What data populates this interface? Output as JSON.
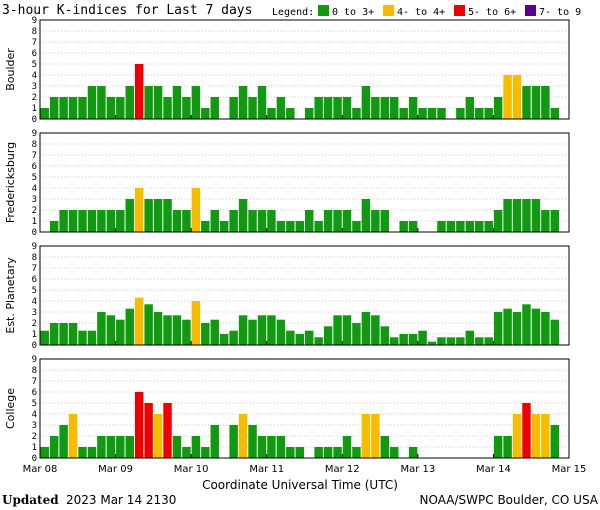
{
  "title": "3-hour K-indices for Last 7 days",
  "legend": {
    "label": "Legend:",
    "items": [
      {
        "label": "0 to 3+",
        "color": "#119911"
      },
      {
        "label": "4- to 4+",
        "color": "#f5bc00"
      },
      {
        "label": "5- to 6+",
        "color": "#ee0000"
      },
      {
        "label": "7- to 9",
        "color": "#5a008f"
      }
    ]
  },
  "footer": {
    "updated_label": "Updated",
    "updated_value": "2023 Mar 14 2130",
    "source": "NOAA/SWPC Boulder, CO USA"
  },
  "chart_data": [
    {
      "type": "bar",
      "name": "Boulder",
      "ylim": [
        0,
        9
      ],
      "yticks": [
        "0",
        "1",
        "2",
        "3",
        "4",
        "5",
        "6",
        "7",
        "8",
        "9"
      ],
      "values": [
        1,
        2,
        2,
        2,
        2,
        3,
        3,
        2,
        2,
        3,
        5,
        3,
        3,
        2,
        3,
        2,
        3,
        1,
        2,
        0,
        2,
        3,
        2,
        3,
        1,
        2,
        1,
        0,
        1,
        2,
        2,
        2,
        2,
        1,
        3,
        2,
        2,
        2,
        1,
        2,
        1,
        1,
        1,
        0,
        1,
        2,
        1,
        1,
        2,
        4,
        4,
        3,
        3,
        3,
        1,
        0
      ]
    },
    {
      "type": "bar",
      "name": "Fredericksburg",
      "ylim": [
        0,
        9
      ],
      "yticks": [
        "0",
        "1",
        "2",
        "3",
        "4",
        "5",
        "6",
        "7",
        "8",
        "9"
      ],
      "values": [
        0,
        1,
        2,
        2,
        2,
        2,
        2,
        2,
        2,
        3,
        4,
        3,
        3,
        3,
        2,
        2,
        4,
        1,
        2,
        1,
        2,
        3,
        2,
        2,
        2,
        1,
        1,
        1,
        2,
        1,
        2,
        2,
        2,
        1,
        3,
        2,
        2,
        0,
        1,
        1,
        0,
        0,
        1,
        1,
        1,
        1,
        1,
        1,
        2,
        3,
        3,
        3,
        3,
        2,
        2,
        0
      ]
    },
    {
      "type": "bar",
      "name": "Est. Planetary",
      "ylim": [
        0,
        9
      ],
      "yticks": [
        "0",
        "1",
        "2",
        "3",
        "4",
        "5",
        "6",
        "7",
        "8",
        "9"
      ],
      "values": [
        1.3,
        2,
        2,
        2,
        1.3,
        1.3,
        3,
        2.7,
        2.3,
        3.3,
        4.3,
        3.7,
        3,
        2.7,
        2.7,
        2.3,
        4,
        2,
        2.3,
        1,
        1.3,
        2.7,
        2.3,
        2.7,
        2.7,
        2.3,
        1.3,
        1,
        1.3,
        0.7,
        1.7,
        2.7,
        2.7,
        2,
        3,
        2.7,
        1.7,
        0.7,
        1,
        1,
        1.3,
        0.3,
        0.7,
        0.7,
        0.7,
        1.3,
        0.7,
        0.7,
        3,
        3.3,
        3,
        3.7,
        3.3,
        3,
        2.3,
        0
      ]
    },
    {
      "type": "bar",
      "name": "College",
      "ylim": [
        0,
        9
      ],
      "yticks": [
        "0",
        "1",
        "2",
        "3",
        "4",
        "5",
        "6",
        "7",
        "8",
        "9"
      ],
      "values": [
        1,
        2,
        3,
        4,
        1,
        1,
        2,
        2,
        2,
        2,
        6,
        5,
        4,
        5,
        2,
        1,
        2,
        1,
        3,
        0,
        3,
        4,
        3,
        2,
        2,
        2,
        1,
        1,
        0,
        1,
        1,
        1,
        2,
        1,
        4,
        4,
        2,
        1,
        0,
        1,
        0,
        0,
        0,
        0,
        0,
        0,
        0,
        0,
        2,
        2,
        4,
        5,
        4,
        4,
        3,
        0
      ]
    }
  ],
  "x_axis": {
    "labels": [
      "Mar 08",
      "Mar 09",
      "Mar 10",
      "Mar 11",
      "Mar 12",
      "Mar 13",
      "Mar 14",
      "Mar 15"
    ],
    "title": "Coordinate Universal Time (UTC)"
  }
}
